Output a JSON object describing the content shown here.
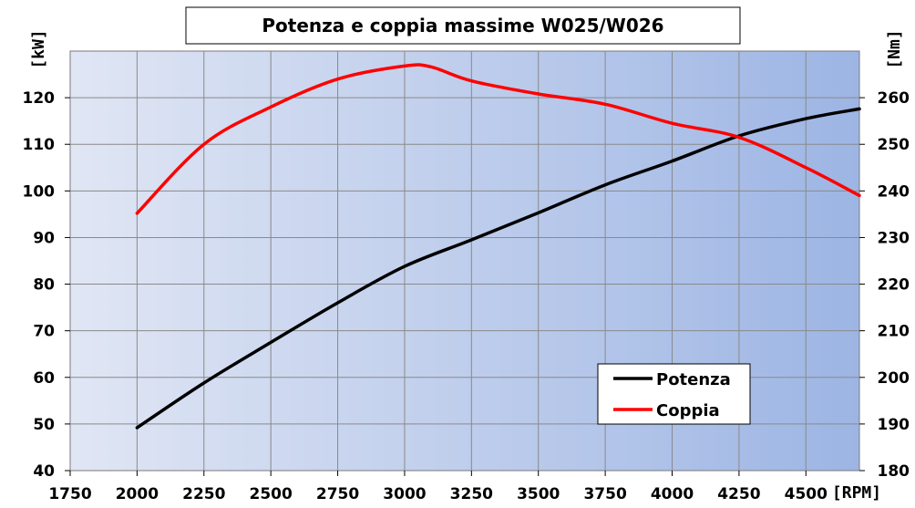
{
  "chart_data": {
    "type": "line",
    "title": "Potenza e coppia massime W025/W026",
    "xlabel": "[RPM]",
    "ylabel_left": "[kW]",
    "ylabel_right": "[Nm]",
    "xlim": [
      1750,
      4700
    ],
    "ylim_left": [
      40,
      130
    ],
    "ylim_right": [
      180,
      270
    ],
    "x_ticks": [
      1750,
      2000,
      2250,
      2500,
      2750,
      3000,
      3250,
      3500,
      3750,
      4000,
      4250,
      4500
    ],
    "y_ticks_left": [
      40,
      50,
      60,
      70,
      80,
      90,
      100,
      110,
      120
    ],
    "y_ticks_right": [
      180,
      190,
      200,
      210,
      220,
      230,
      240,
      250,
      260
    ],
    "grid": true,
    "legend_position": "bottom-right",
    "series": [
      {
        "name": "Potenza",
        "axis": "left",
        "color": "#000000",
        "x": [
          2000,
          2250,
          2500,
          2750,
          3000,
          3250,
          3500,
          3750,
          4000,
          4250,
          4500,
          4700
        ],
        "values": [
          49.2,
          58.8,
          67.5,
          76,
          83.8,
          89.5,
          95.3,
          101.3,
          106.4,
          111.8,
          115.5,
          117.6
        ]
      },
      {
        "name": "Coppia",
        "axis": "right",
        "color": "#ff0000",
        "x": [
          2000,
          2250,
          2500,
          2750,
          3000,
          3100,
          3250,
          3500,
          3750,
          4000,
          4250,
          4500,
          4700
        ],
        "values": [
          235.2,
          250,
          258,
          264,
          266.8,
          266.6,
          263.6,
          260.8,
          258.6,
          254.5,
          251.5,
          245,
          239
        ]
      }
    ]
  }
}
